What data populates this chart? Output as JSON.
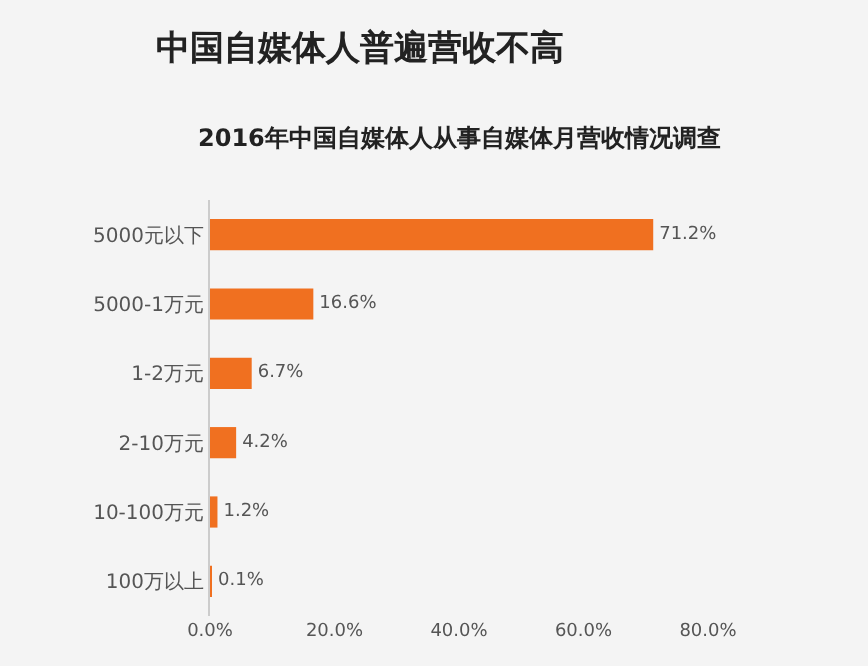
{
  "chart_data": {
    "type": "bar",
    "orientation": "horizontal",
    "title": "中国自媒体人普遍营收不高",
    "subtitle": "2016年中国自媒体人从事自媒体月营收情况调查",
    "categories": [
      "5000元以下",
      "5000-1万元",
      "1-2万元",
      "2-10万元",
      "10-100万元",
      "100万以上"
    ],
    "values": [
      71.2,
      16.6,
      6.7,
      4.2,
      1.2,
      0.1
    ],
    "value_labels": [
      "71.2%",
      "16.6%",
      "6.7%",
      "4.2%",
      "1.2%",
      "0.1%"
    ],
    "color": "#f07020",
    "xlim": [
      0,
      80
    ],
    "xticks": [
      {
        "value": 0,
        "label": "0.0%"
      },
      {
        "value": 20,
        "label": "20.0%"
      },
      {
        "value": 40,
        "label": "40.0%"
      },
      {
        "value": 60,
        "label": "60.0%"
      },
      {
        "value": 80,
        "label": "80.0%"
      }
    ],
    "grid": false,
    "legend": false
  }
}
